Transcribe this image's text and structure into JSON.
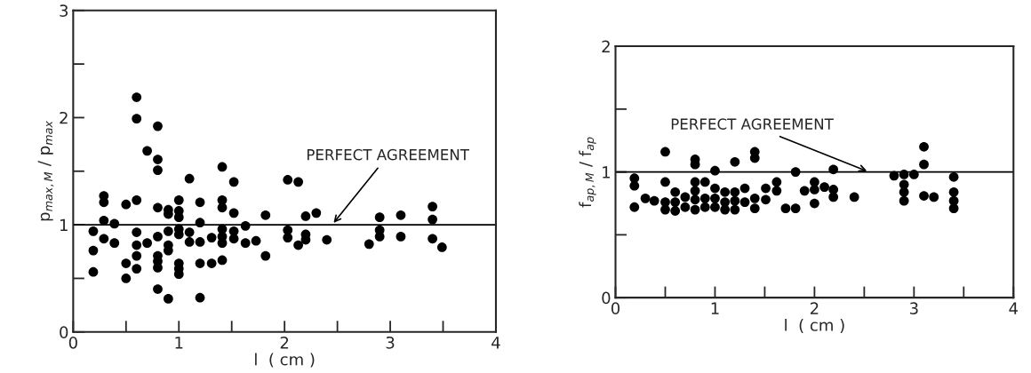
{
  "chart_data": [
    {
      "type": "scatter",
      "xlabel": "l  ( cm )",
      "ylabel": "p$_{max,M}$ / p$_{max}$",
      "marker": "circle",
      "grid": false,
      "legend": false,
      "xlim": [
        0,
        4
      ],
      "ylim": [
        0,
        3
      ],
      "xticks": [
        0,
        {
          "value": 0.5,
          "label": null
        },
        1,
        {
          "value": 1.5,
          "label": null
        },
        2,
        {
          "value": 2.5,
          "label": null
        },
        3,
        {
          "value": 3.5,
          "label": null
        },
        4
      ],
      "yticks": [
        0,
        {
          "value": 0.5,
          "label": null
        },
        1,
        {
          "value": 1.5,
          "label": null
        },
        2,
        {
          "value": 2.5,
          "label": null
        },
        3
      ],
      "ref_lines": [
        {
          "axis": "y",
          "value": 1,
          "color": "#000000"
        }
      ],
      "annotations": [
        {
          "text": "PERFECT AGREEMENT",
          "x": 2.45,
          "y": 1
        }
      ],
      "series": [
        {
          "color": "#000000",
          "x": [
            0.6,
            0.6,
            0.8,
            0.7,
            0.8,
            0.8,
            1.1,
            1.41,
            1.52,
            2.03,
            2.13,
            0.29,
            0.29,
            0.6,
            0.5,
            0.8,
            0.9,
            0.9,
            1.0,
            1.0,
            1.0,
            1.2,
            1.2,
            1.41,
            1.41,
            1.52,
            1.82,
            0.29,
            0.39,
            0.19,
            0.19,
            0.19,
            0.29,
            0.39,
            0.5,
            0.5,
            0.6,
            0.6,
            0.6,
            0.6,
            0.7,
            0.8,
            0.8,
            0.8,
            0.8,
            0.8,
            0.9,
            0.9,
            0.9,
            0.9,
            1.0,
            1.0,
            1.0,
            1.0,
            1.0,
            1.1,
            1.1,
            1.2,
            1.2,
            1.2,
            1.31,
            1.31,
            1.41,
            1.41,
            1.41,
            1.41,
            1.52,
            1.52,
            1.63,
            1.63,
            1.73,
            1.82,
            2.03,
            2.03,
            2.13,
            2.2,
            2.3,
            2.2,
            2.2,
            2.4,
            2.8,
            2.9,
            2.9,
            2.9,
            3.1,
            3.1,
            3.4,
            3.4,
            3.4,
            3.49
          ],
          "values": [
            2.19,
            1.99,
            1.92,
            1.69,
            1.61,
            1.51,
            1.43,
            1.54,
            1.4,
            1.42,
            1.4,
            1.27,
            1.21,
            1.23,
            1.19,
            1.16,
            1.14,
            1.1,
            1.23,
            1.13,
            1.07,
            1.21,
            1.02,
            1.23,
            1.16,
            1.11,
            1.09,
            1.04,
            1.01,
            0.94,
            0.76,
            0.56,
            0.87,
            0.83,
            0.64,
            0.5,
            0.93,
            0.81,
            0.71,
            0.59,
            0.83,
            0.89,
            0.71,
            0.66,
            0.6,
            0.4,
            0.94,
            0.81,
            0.76,
            0.31,
            0.96,
            0.91,
            0.64,
            0.59,
            0.54,
            0.93,
            0.84,
            0.84,
            0.64,
            0.32,
            0.88,
            0.64,
            0.96,
            0.89,
            0.83,
            0.67,
            0.94,
            0.87,
            0.99,
            0.83,
            0.85,
            0.71,
            0.95,
            0.88,
            0.81,
            1.08,
            1.11,
            0.91,
            0.86,
            0.86,
            0.82,
            1.07,
            0.95,
            0.89,
            1.09,
            0.89,
            1.17,
            1.05,
            0.87,
            0.79
          ]
        }
      ]
    },
    {
      "type": "scatter",
      "xlabel": "l  ( cm )",
      "ylabel": "f$_{ap,M}$ / f$_{ap}$",
      "marker": "circle",
      "grid": false,
      "legend": false,
      "xlim": [
        0,
        4
      ],
      "ylim": [
        0,
        2
      ],
      "xticks": [
        0,
        {
          "value": 0.5,
          "label": null
        },
        1,
        {
          "value": 1.5,
          "label": null
        },
        2,
        {
          "value": 2.5,
          "label": null
        },
        3,
        {
          "value": 3.5,
          "label": null
        },
        4
      ],
      "yticks": [
        0,
        {
          "value": 0.5,
          "label": null
        },
        1,
        {
          "value": 1.5,
          "label": null
        },
        2
      ],
      "ref_lines": [
        {
          "axis": "y",
          "value": 1,
          "color": "#000000"
        }
      ],
      "annotations": [
        {
          "text": "PERFECT AGREEMENT",
          "x": 2.55,
          "y": 1
        }
      ],
      "series": [
        {
          "color": "#000000",
          "x": [
            0.5,
            0.8,
            0.8,
            1.2,
            1.4,
            1.4,
            1.0,
            1.81,
            0.19,
            0.19,
            0.19,
            0.3,
            0.39,
            0.5,
            0.5,
            0.5,
            0.6,
            0.6,
            0.6,
            0.7,
            0.7,
            0.8,
            0.8,
            0.8,
            0.8,
            0.9,
            0.9,
            0.9,
            1.0,
            1.0,
            1.0,
            1.1,
            1.1,
            1.1,
            1.2,
            1.2,
            1.2,
            1.3,
            1.3,
            1.4,
            1.4,
            1.51,
            1.51,
            1.62,
            1.62,
            1.71,
            1.81,
            1.9,
            2.0,
            2.0,
            2.0,
            2.1,
            2.19,
            2.19,
            2.19,
            2.4,
            2.8,
            2.9,
            2.9,
            2.9,
            2.9,
            3.0,
            3.1,
            3.1,
            3.1,
            3.2,
            3.4,
            3.4,
            3.4,
            3.4
          ],
          "values": [
            1.16,
            1.1,
            1.06,
            1.08,
            1.16,
            1.11,
            1.01,
            1.0,
            0.95,
            0.89,
            0.72,
            0.79,
            0.77,
            0.92,
            0.76,
            0.7,
            0.84,
            0.76,
            0.69,
            0.8,
            0.72,
            0.92,
            0.85,
            0.78,
            0.7,
            0.92,
            0.79,
            0.72,
            0.87,
            0.79,
            0.72,
            0.84,
            0.76,
            0.7,
            0.84,
            0.77,
            0.7,
            0.87,
            0.76,
            0.79,
            0.71,
            0.87,
            0.78,
            0.92,
            0.85,
            0.71,
            0.71,
            0.85,
            0.92,
            0.86,
            0.75,
            0.88,
            1.02,
            0.86,
            0.8,
            0.8,
            0.97,
            0.98,
            0.9,
            0.84,
            0.77,
            0.98,
            1.2,
            1.06,
            0.81,
            0.8,
            0.96,
            0.84,
            0.77,
            0.71
          ]
        }
      ]
    }
  ]
}
